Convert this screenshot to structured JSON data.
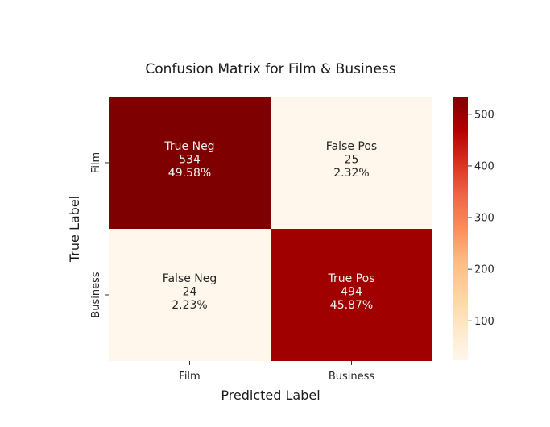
{
  "chart_data": {
    "type": "heatmap",
    "title": "Confusion Matrix for Film & Business",
    "xlabel": "Predicted Label",
    "ylabel": "True Label",
    "x_categories": [
      "Film",
      "Business"
    ],
    "y_categories": [
      "Film",
      "Business"
    ],
    "cells": [
      [
        {
          "name": "True Neg",
          "count": 534,
          "percent": "49.58%"
        },
        {
          "name": "False Pos",
          "count": 25,
          "percent": "2.32%"
        }
      ],
      [
        {
          "name": "False Neg",
          "count": 24,
          "percent": "2.23%"
        },
        {
          "name": "True Pos",
          "count": 494,
          "percent": "45.87%"
        }
      ]
    ],
    "colormap": "OrRd",
    "colorbar": {
      "min": 24,
      "max": 534,
      "ticks": [
        100,
        200,
        300,
        400,
        500
      ]
    },
    "grid": false,
    "legend": "colorbar-right"
  }
}
